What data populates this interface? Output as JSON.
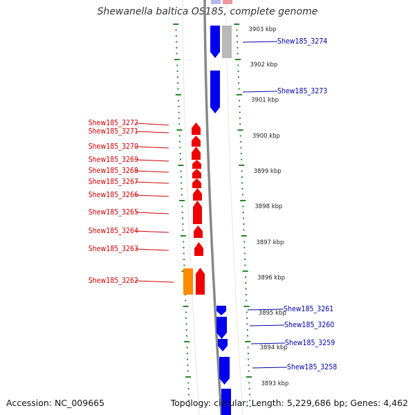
{
  "title": "Shewanella baltica OS185, complete genome",
  "footer": {
    "accession": "Accession: NC_009665",
    "stats": "Topology: circular; Length: 5,229,686 bp; Genes: 4,462"
  },
  "colors": {
    "forward_gene": "#0000ee",
    "reverse_gene": "#ee0000",
    "pseudo_gene": "#ff8c00",
    "other_gene": "#b8b8b8",
    "forward_label": "#0000aa",
    "reverse_label": "#cc0000",
    "tick": "#228822",
    "backbone": "#888888"
  },
  "scale": {
    "unit": "kbp",
    "ticks": [
      "3903 kbp",
      "3902 kbp",
      "3901 kbp",
      "3900 kbp",
      "3899 kbp",
      "3898 kbp",
      "3897 kbp",
      "3896 kbp",
      "3895 kbp",
      "3894 kbp",
      "3893 kbp"
    ]
  },
  "forward_genes": [
    {
      "label": "Shew185_3274"
    },
    {
      "label": "Shew185_3273"
    },
    {
      "label": "Shew185_3261"
    },
    {
      "label": "Shew185_3260"
    },
    {
      "label": "Shew185_3259"
    },
    {
      "label": "Shew185_3258"
    }
  ],
  "reverse_genes": [
    {
      "label": "Shew185_3272"
    },
    {
      "label": "Shew185_3271"
    },
    {
      "label": "Shew185_3270"
    },
    {
      "label": "Shew185_3269"
    },
    {
      "label": "Shew185_3268"
    },
    {
      "label": "Shew185_3267"
    },
    {
      "label": "Shew185_3266"
    },
    {
      "label": "Shew185_3265"
    },
    {
      "label": "Shew185_3264"
    },
    {
      "label": "Shew185_3263"
    },
    {
      "label": "Shew185_3262"
    }
  ]
}
